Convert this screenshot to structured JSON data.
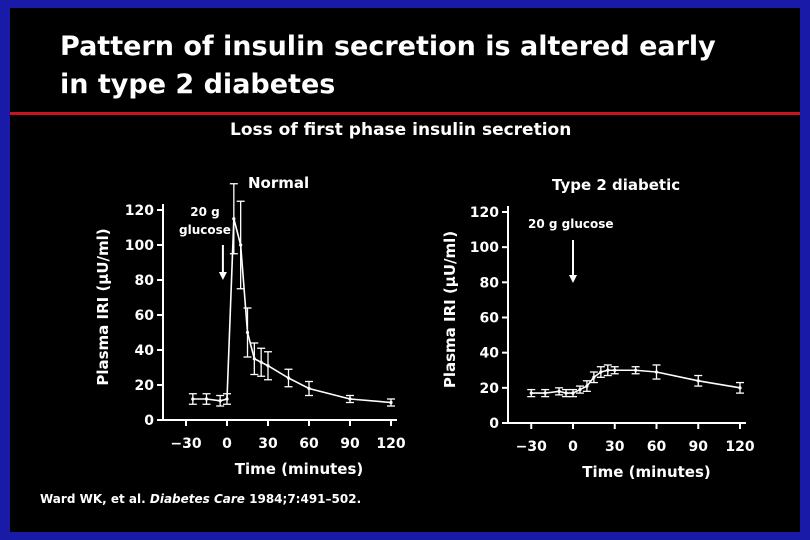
{
  "slide": {
    "title_line1": "Pattern of insulin secretion is altered early",
    "title_line2": "in type 2 diabetes",
    "subtitle": "Loss of first phase insulin secretion",
    "citation_authors": "Ward WK, et al.",
    "citation_journal": "Diabetes Care",
    "citation_ref": "1984;7:491–502."
  },
  "chart_data": [
    {
      "type": "line",
      "title": "Normal",
      "xlabel": "Time (minutes)",
      "ylabel": "Plasma IRI (µU/ml)",
      "xlim": [
        -40,
        125
      ],
      "ylim": [
        0,
        120
      ],
      "xticks": [
        -30,
        0,
        30,
        60,
        90,
        120
      ],
      "xtick_labels": [
        "−30",
        "0",
        "30",
        "60",
        "90",
        "120"
      ],
      "yticks": [
        0,
        20,
        40,
        60,
        80,
        100,
        120
      ],
      "annotation_line1": "20 g",
      "annotation_line2": "glucose",
      "arrow_x": -3,
      "x": [
        -25,
        -15,
        -5,
        0,
        5,
        10,
        15,
        20,
        25,
        30,
        45,
        60,
        90,
        120
      ],
      "y": [
        12,
        12,
        11,
        12,
        115,
        100,
        50,
        35,
        33,
        31,
        24,
        18,
        12,
        10
      ],
      "err": [
        3,
        3,
        3,
        3,
        20,
        25,
        14,
        9,
        8,
        8,
        5,
        4,
        2,
        2
      ]
    },
    {
      "type": "line",
      "title": "Type 2 diabetic",
      "xlabel": "Time (minutes)",
      "ylabel": "Plasma IRI (µU/ml)",
      "xlim": [
        -40,
        125
      ],
      "ylim": [
        0,
        120
      ],
      "xticks": [
        -30,
        0,
        30,
        60,
        90,
        120
      ],
      "xtick_labels": [
        "−30",
        "0",
        "30",
        "60",
        "90",
        "120"
      ],
      "yticks": [
        0,
        20,
        40,
        60,
        80,
        100,
        120
      ],
      "annotation_line1": "20 g glucose",
      "annotation_line2": "",
      "arrow_x": 0,
      "x": [
        -30,
        -20,
        -10,
        -5,
        0,
        5,
        10,
        15,
        20,
        25,
        30,
        45,
        60,
        90,
        120
      ],
      "y": [
        17,
        17,
        18,
        17,
        17,
        19,
        21,
        26,
        29,
        30,
        30,
        30,
        29,
        24,
        20
      ],
      "err": [
        2,
        2,
        2,
        2,
        2,
        2,
        3,
        3,
        3,
        3,
        2,
        2,
        4,
        3,
        3
      ]
    }
  ]
}
